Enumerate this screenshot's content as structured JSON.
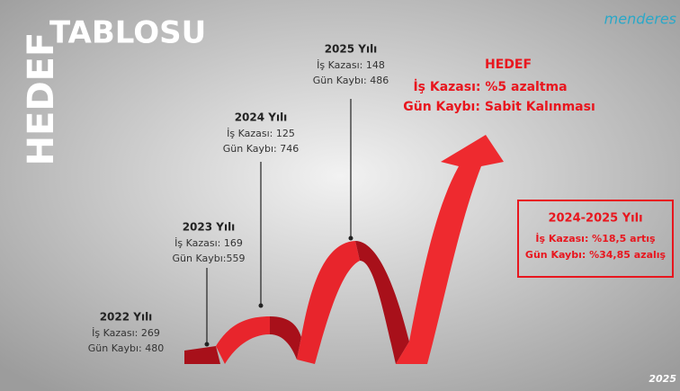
{
  "title": {
    "vertical": "HEDEF",
    "horizontal": "TABLOSU"
  },
  "logo": "menderes",
  "years": [
    {
      "year": "2022 Yılı",
      "lines": [
        "İş Kazası: 269",
        "Gün Kaybı: 480"
      ]
    },
    {
      "year": "2023 Yılı",
      "lines": [
        "İş Kazası: 169",
        "Gün Kaybı:559"
      ]
    },
    {
      "year": "2024 Yılı",
      "lines": [
        "İş Kazası: 125",
        "Gün Kaybı: 746"
      ]
    },
    {
      "year": "2025 Yılı",
      "lines": [
        "İş Kazası: 148",
        "Gün Kaybı: 486"
      ]
    }
  ],
  "target": {
    "title": "HEDEF",
    "lines": [
      "İş Kazası: %5 azaltma",
      "Gün Kaybı: Sabit Kalınması"
    ]
  },
  "comparison": {
    "title": "2024-2025 Yılı",
    "lines": [
      "İş Kazası: %18,5 artış",
      "Gün Kaybı: %34,85 azalış"
    ]
  },
  "footer": "2025"
}
